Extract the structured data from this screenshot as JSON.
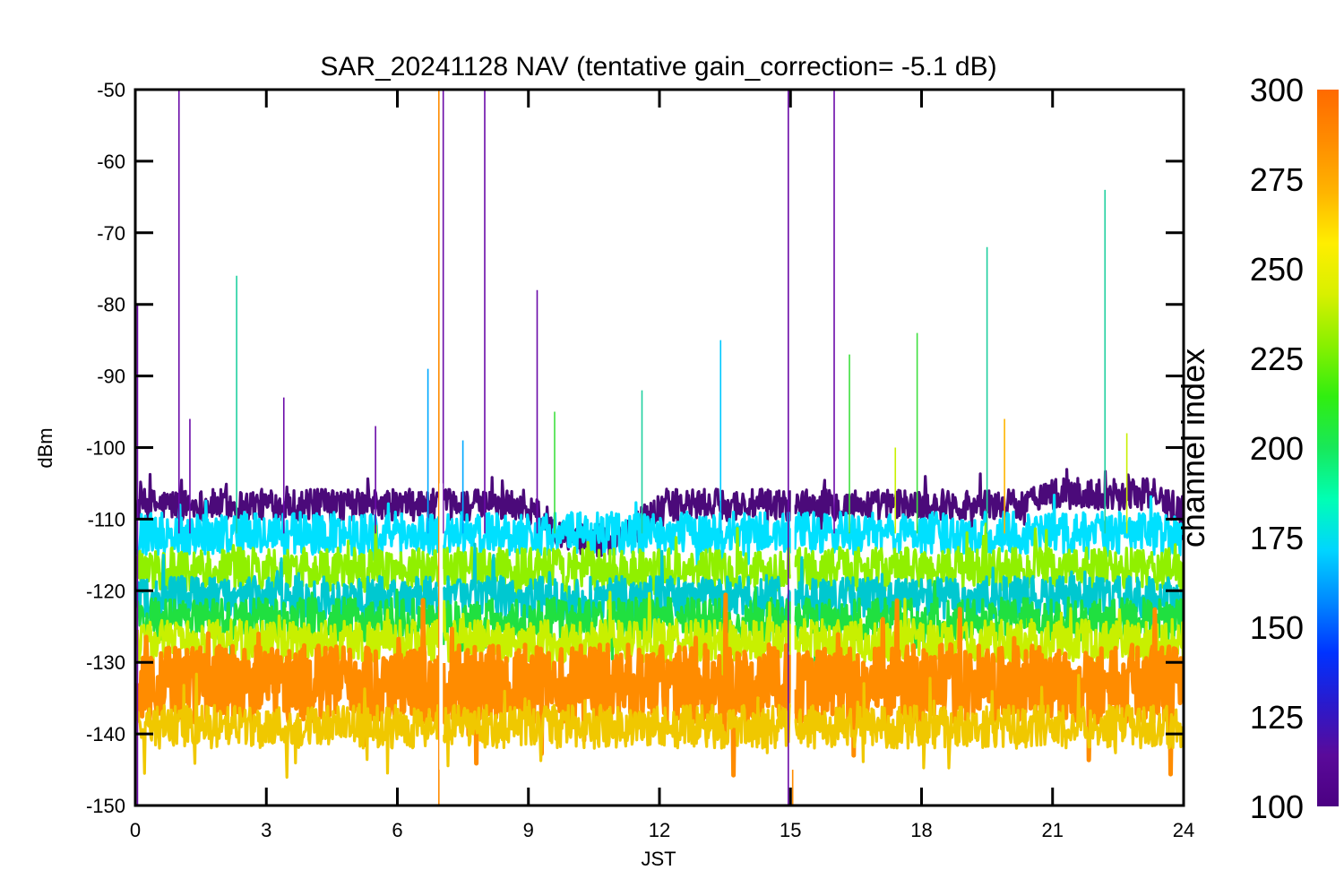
{
  "chart_data": {
    "type": "line",
    "title": "SAR_20241128 NAV (tentative gain_correction= -5.1 dB)",
    "xlabel": "JST",
    "ylabel": "dBm",
    "xlim": [
      0,
      24
    ],
    "ylim": [
      -150,
      -50
    ],
    "x_ticks": [
      "0",
      "3",
      "6",
      "9",
      "12",
      "15",
      "18",
      "21",
      "24"
    ],
    "y_ticks": [
      "-50",
      "-60",
      "-70",
      "-80",
      "-90",
      "-100",
      "-110",
      "-120",
      "-130",
      "-140",
      "-150"
    ],
    "grid": false,
    "colorbar": {
      "label": "channel index",
      "range": [
        100,
        300
      ],
      "ticks": [
        "300",
        "275",
        "250",
        "225",
        "200",
        "175",
        "150",
        "125",
        "100"
      ],
      "colormap": [
        "#4b0082",
        "#5a0a9a",
        "#2a1acc",
        "#0033ff",
        "#0088ff",
        "#00d5ff",
        "#00ffb4",
        "#18e85a",
        "#30ee10",
        "#88f000",
        "#d8f000",
        "#ffee00",
        "#ffb400",
        "#ff8c00",
        "#ff6a00"
      ]
    },
    "gaps_x": [
      7.0,
      15.05
    ],
    "bands": [
      {
        "channel": 110,
        "level_dBm": -108,
        "dip_hour": 10.5,
        "dip_depth_dB": 5,
        "color": "#4b0a7a"
      },
      {
        "channel": 175,
        "level_dBm": -112,
        "color": "#00e0ff"
      },
      {
        "channel": 245,
        "level_dBm": -117,
        "color": "#90f000"
      },
      {
        "channel": 185,
        "level_dBm": -121,
        "color": "#00c8d0"
      },
      {
        "channel": 225,
        "level_dBm": -124,
        "color": "#20e040"
      },
      {
        "channel": 265,
        "level_dBm": -127,
        "color": "#c8f000"
      },
      {
        "channel": 290,
        "level_dBm": -133,
        "color": "#ff8c00"
      },
      {
        "channel": 280,
        "level_dBm": -139,
        "color": "#f0c800"
      }
    ],
    "spikes": [
      {
        "x": 0.05,
        "y_top": -80,
        "y_bottom": -150,
        "color": "#6a0aa8"
      },
      {
        "x": 1.0,
        "y_top": -50,
        "color": "#6a0aa8"
      },
      {
        "x": 1.25,
        "y_top": -96,
        "color": "#6a0aa8"
      },
      {
        "x": 2.32,
        "y_top": -76,
        "color": "#20d0a0"
      },
      {
        "x": 3.4,
        "y_top": -93,
        "color": "#6a0aa8"
      },
      {
        "x": 5.5,
        "y_top": -97,
        "color": "#6a0aa8"
      },
      {
        "x": 6.7,
        "y_top": -89,
        "color": "#00a8ff"
      },
      {
        "x": 6.95,
        "y_top": -50,
        "y_bottom": -150,
        "color": "#ff8c00"
      },
      {
        "x": 7.05,
        "y_top": -50,
        "color": "#6a0aa8"
      },
      {
        "x": 7.5,
        "y_top": -99,
        "color": "#00a8ff"
      },
      {
        "x": 8.0,
        "y_top": -50,
        "color": "#6a0aa8"
      },
      {
        "x": 9.2,
        "y_top": -78,
        "color": "#6a0aa8"
      },
      {
        "x": 9.6,
        "y_top": -95,
        "color": "#40e040"
      },
      {
        "x": 11.6,
        "y_top": -92,
        "color": "#20d0a0"
      },
      {
        "x": 13.4,
        "y_top": -85,
        "color": "#00c8ff"
      },
      {
        "x": 14.95,
        "y_top": -50,
        "y_bottom": -150,
        "color": "#6a0aa8"
      },
      {
        "x": 15.05,
        "y_top": -110,
        "y_bottom": -150,
        "color": "#ff8c00"
      },
      {
        "x": 16.0,
        "y_top": -50,
        "color": "#6a0aa8"
      },
      {
        "x": 16.35,
        "y_top": -87,
        "color": "#40e040"
      },
      {
        "x": 17.4,
        "y_top": -100,
        "color": "#c8f000"
      },
      {
        "x": 17.9,
        "y_top": -84,
        "color": "#40e040"
      },
      {
        "x": 19.5,
        "y_top": -72,
        "color": "#20d0a0"
      },
      {
        "x": 19.9,
        "y_top": -96,
        "color": "#ffb400"
      },
      {
        "x": 22.2,
        "y_top": -64,
        "color": "#20d0a0"
      },
      {
        "x": 22.7,
        "y_top": -98,
        "color": "#c8f000"
      }
    ]
  }
}
